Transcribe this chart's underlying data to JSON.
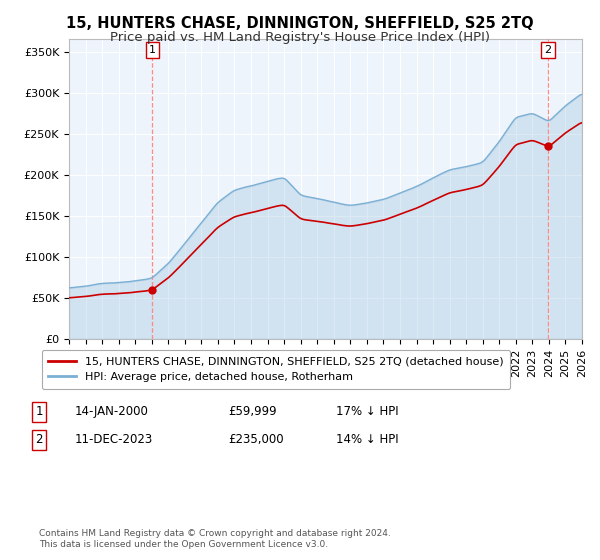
{
  "title": "15, HUNTERS CHASE, DINNINGTON, SHEFFIELD, S25 2TQ",
  "subtitle": "Price paid vs. HM Land Registry's House Price Index (HPI)",
  "ylabel_ticks": [
    "£0",
    "£50K",
    "£100K",
    "£150K",
    "£200K",
    "£250K",
    "£300K",
    "£350K"
  ],
  "ytick_values": [
    0,
    50000,
    100000,
    150000,
    200000,
    250000,
    300000,
    350000
  ],
  "ylim": [
    0,
    365000
  ],
  "xlim_start": 1995.0,
  "xlim_end": 2026.0,
  "sale1_x": 2000.04,
  "sale1_y": 59999,
  "sale2_x": 2023.94,
  "sale2_y": 235000,
  "sale1_label": "1",
  "sale2_label": "2",
  "hpi_color": "#7bafd4",
  "hpi_fill_color": "#ddeeff",
  "sale_color": "#cc0000",
  "legend_house": "15, HUNTERS CHASE, DINNINGTON, SHEFFIELD, S25 2TQ (detached house)",
  "legend_hpi": "HPI: Average price, detached house, Rotherham",
  "footnote": "Contains HM Land Registry data © Crown copyright and database right 2024.\nThis data is licensed under the Open Government Licence v3.0.",
  "background_color": "#ffffff",
  "plot_bg_color": "#eef4fb",
  "grid_color": "#ffffff",
  "title_fontsize": 10.5,
  "subtitle_fontsize": 9.5,
  "tick_fontsize": 8
}
